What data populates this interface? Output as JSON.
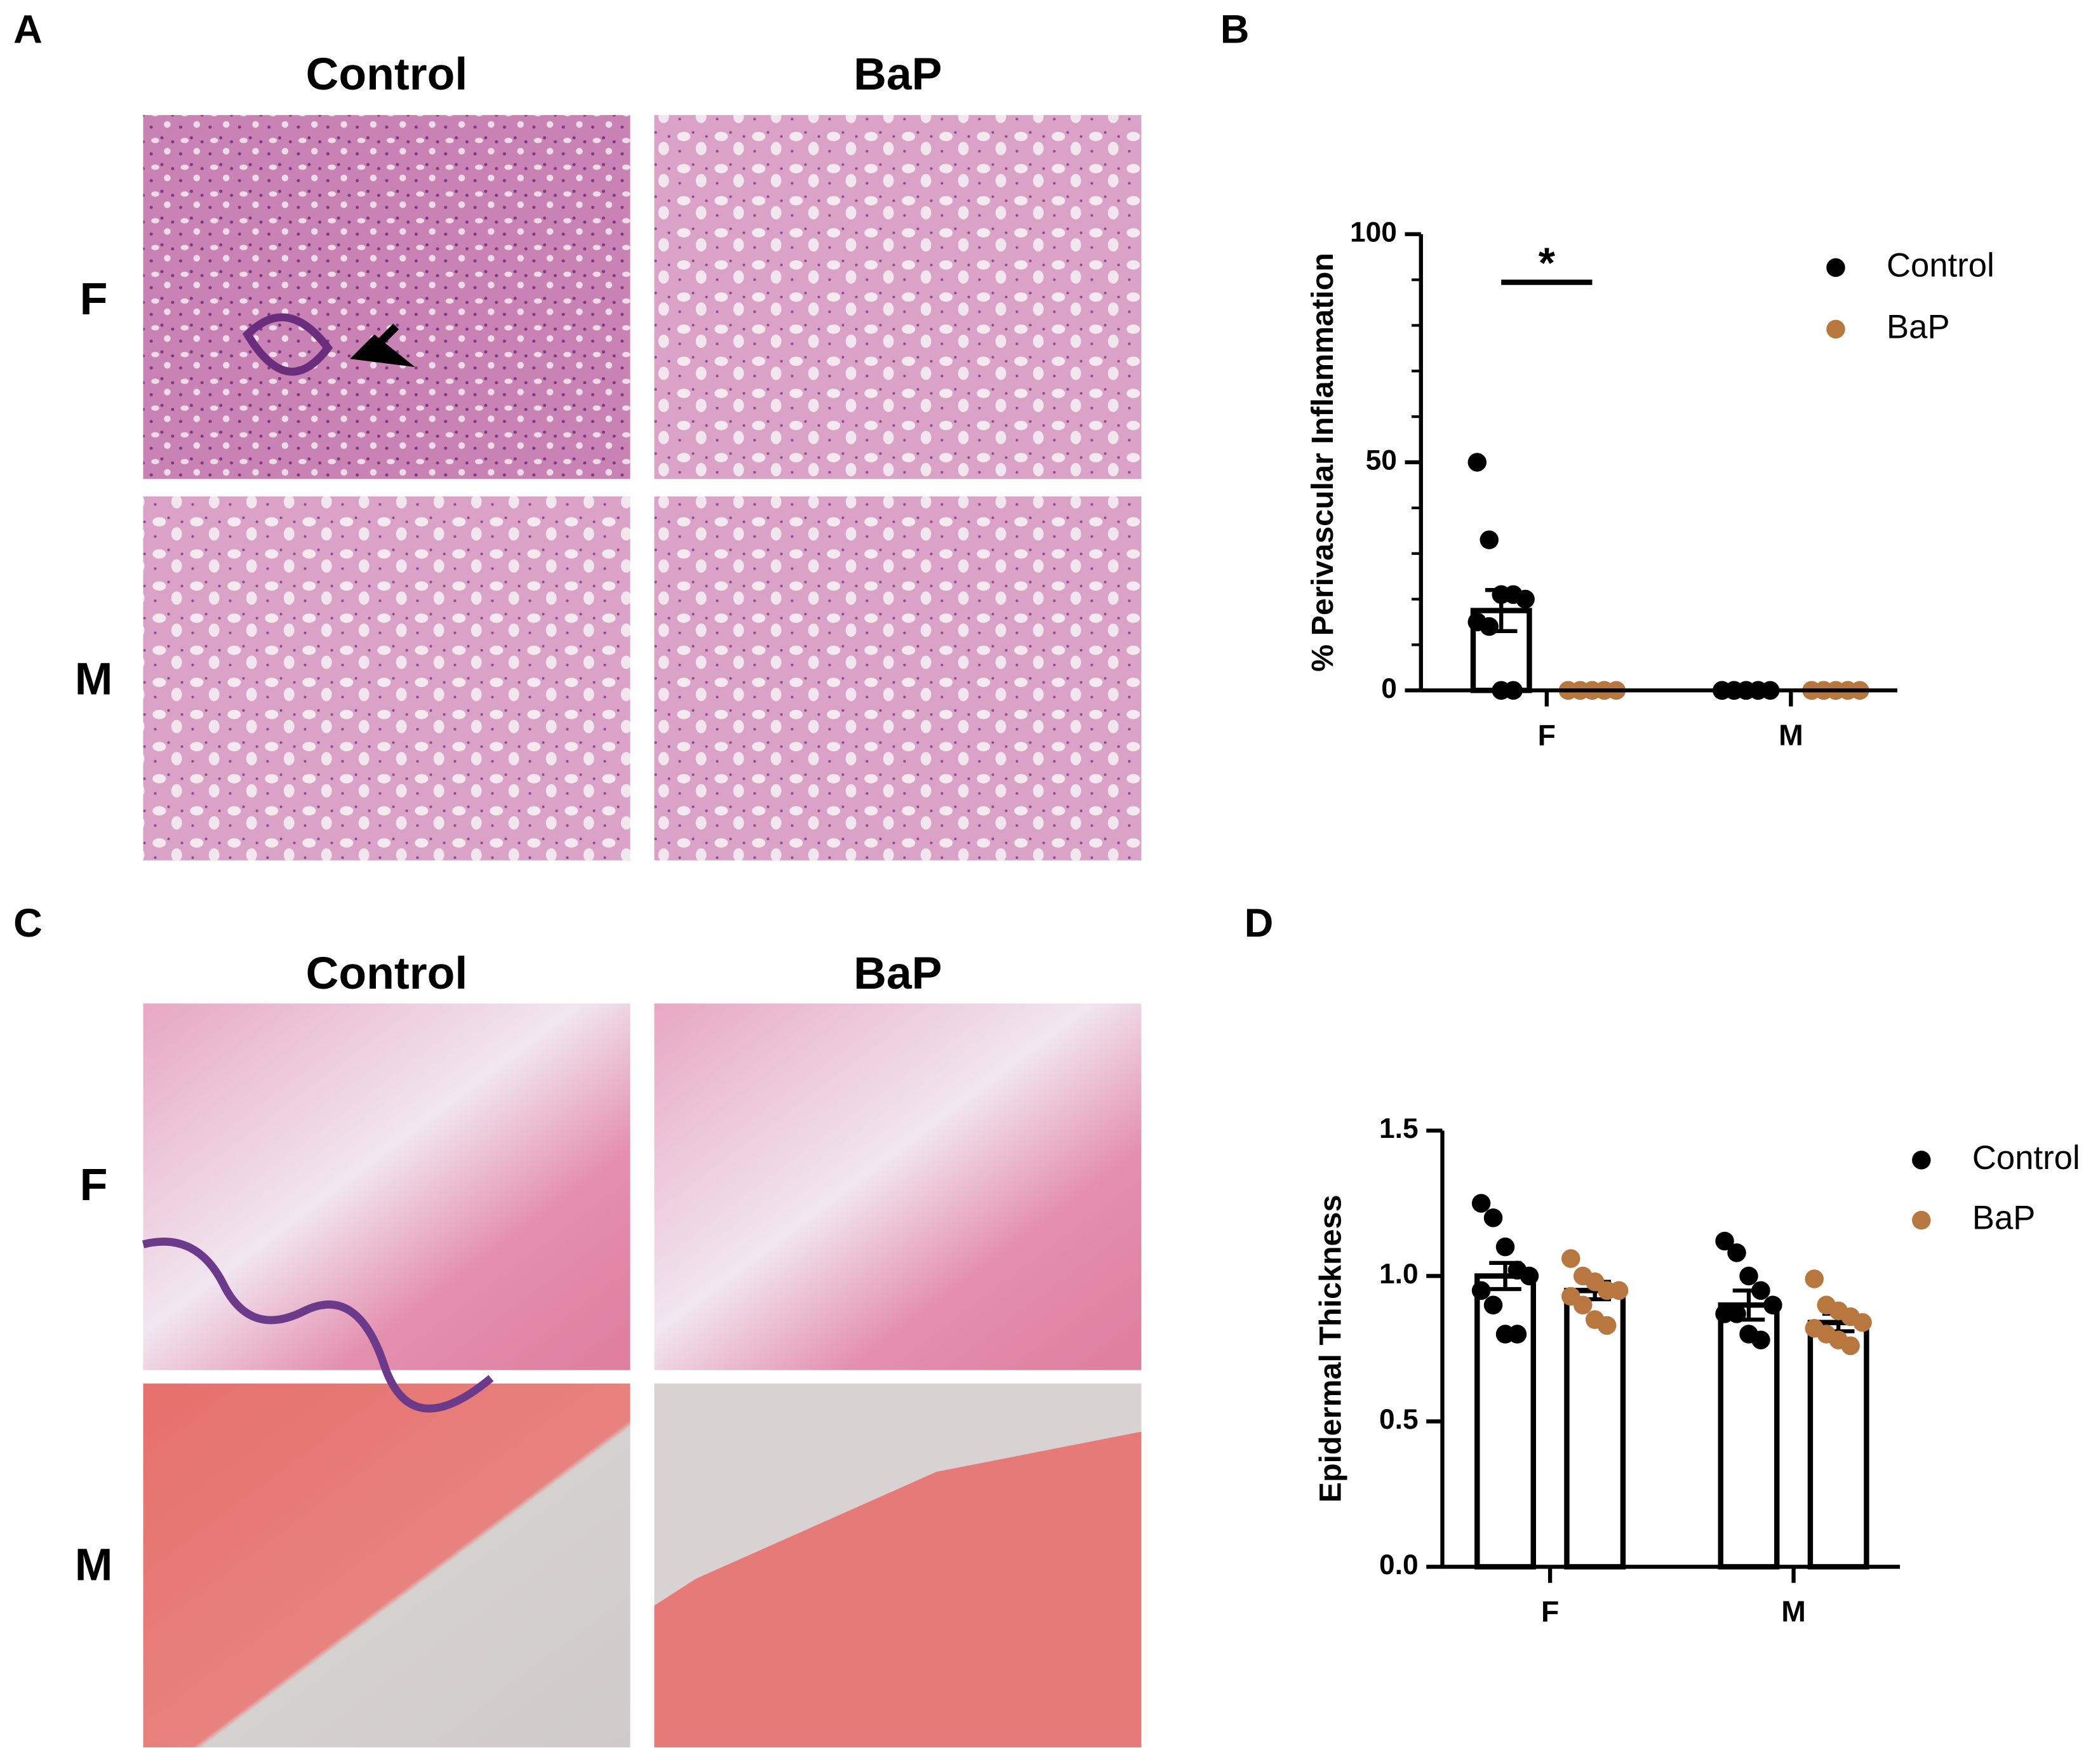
{
  "figure": {
    "panels": [
      {
        "label": "A",
        "columns": [
          "Control",
          "BaP"
        ],
        "rows": [
          "F",
          "M"
        ]
      },
      {
        "label": "C",
        "columns": [
          "Control",
          "BaP"
        ],
        "rows": [
          "F",
          "M"
        ]
      }
    ]
  },
  "chart_data": [
    {
      "type": "bar",
      "panel": "B",
      "ylabel": "% Perivascular Inflammation",
      "categories": [
        "F",
        "M"
      ],
      "series": [
        {
          "name": "Control",
          "color": "#000000",
          "values": [
            17.5,
            0
          ],
          "errors": [
            4.5,
            0
          ],
          "points": [
            [
              50,
              33,
              21,
              21,
              20,
              15,
              14,
              0,
              0
            ],
            [
              0,
              0,
              0,
              0,
              0,
              0,
              0,
              0,
              0
            ]
          ]
        },
        {
          "name": "BaP",
          "color": "#b8773e",
          "values": [
            0,
            0
          ],
          "errors": [
            0,
            0
          ],
          "points": [
            [
              0,
              0,
              0,
              0,
              0,
              0,
              0,
              0,
              0
            ],
            [
              0,
              0,
              0,
              0,
              0,
              0,
              0,
              0,
              0
            ]
          ]
        }
      ],
      "annotations": [
        {
          "text": "*"
        }
      ],
      "ylim": [
        0,
        100
      ],
      "yticks": [
        0,
        50,
        100
      ]
    },
    {
      "type": "bar",
      "panel": "D",
      "ylabel": "Epidermal Thickness",
      "categories": [
        "F",
        "M"
      ],
      "series": [
        {
          "name": "Control",
          "color": "#000000",
          "values": [
            1.0,
            0.9
          ],
          "errors": [
            0.045,
            0.05
          ],
          "points": [
            [
              1.25,
              1.2,
              1.1,
              1.02,
              1.0,
              0.95,
              0.9,
              0.8,
              0.8
            ],
            [
              1.12,
              1.08,
              1.0,
              0.95,
              0.9,
              0.87,
              0.87,
              0.8,
              0.78
            ]
          ]
        },
        {
          "name": "BaP",
          "color": "#b8773e",
          "values": [
            0.95,
            0.84
          ],
          "errors": [
            0.03,
            0.03
          ],
          "points": [
            [
              1.06,
              1.0,
              0.98,
              0.95,
              0.95,
              0.93,
              0.9,
              0.85,
              0.83
            ],
            [
              0.99,
              0.9,
              0.88,
              0.86,
              0.84,
              0.82,
              0.8,
              0.78,
              0.76
            ]
          ]
        }
      ],
      "ylim": [
        0,
        1.5
      ],
      "yticks": [
        {
          "value": 0,
          "label": "0.0"
        },
        0.5,
        {
          "value": 1,
          "label": "1.0"
        },
        1.5
      ]
    }
  ]
}
